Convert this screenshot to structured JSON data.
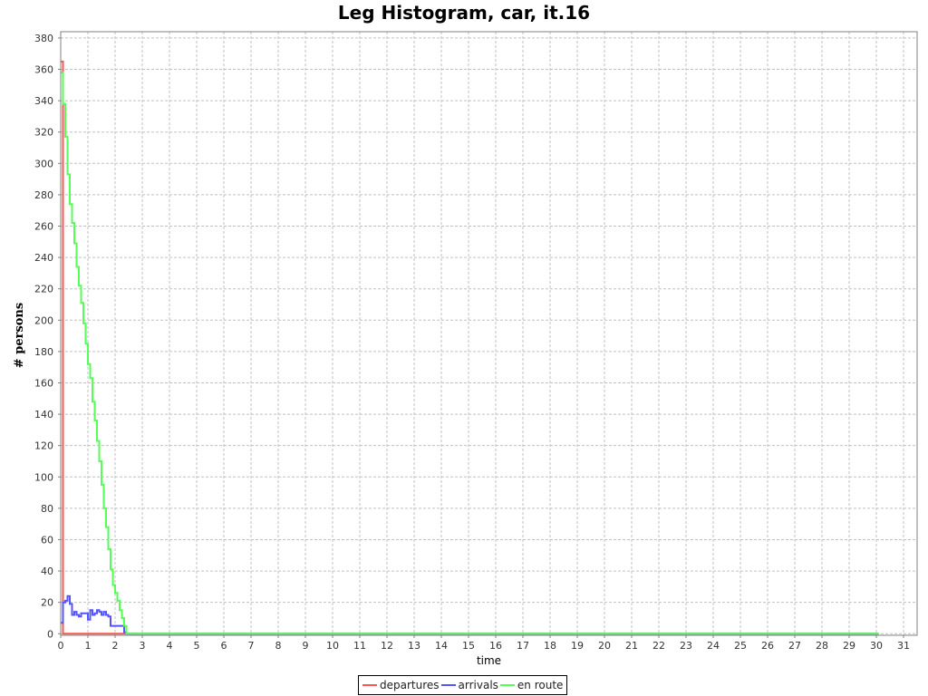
{
  "chart_data": {
    "type": "line",
    "title": "Leg Histogram, car, it.16",
    "xlabel": "time",
    "ylabel": "# persons",
    "xlim": [
      0,
      31.5
    ],
    "ylim": [
      -1,
      384
    ],
    "xticks": [
      0,
      1,
      2,
      3,
      4,
      5,
      6,
      7,
      8,
      9,
      10,
      11,
      12,
      13,
      14,
      15,
      16,
      17,
      18,
      19,
      20,
      21,
      22,
      23,
      24,
      25,
      26,
      27,
      28,
      29,
      30,
      31
    ],
    "yticks": [
      0,
      20,
      40,
      60,
      80,
      100,
      120,
      140,
      160,
      180,
      200,
      220,
      240,
      260,
      280,
      300,
      320,
      340,
      360,
      380
    ],
    "grid": true,
    "legend_position": "bottom",
    "step": 0.08333,
    "series": [
      {
        "name": "departures",
        "color": "#ff5555",
        "x": [
          0,
          0.0833,
          0.1667,
          30
        ],
        "y": [
          365,
          0,
          0,
          0
        ]
      },
      {
        "name": "arrivals",
        "color": "#5555ff",
        "x": [
          0,
          0.0833,
          0.1667,
          0.25,
          0.3333,
          0.4167,
          0.5,
          0.5833,
          0.6667,
          0.75,
          0.8333,
          0.9167,
          1.0,
          1.0833,
          1.1667,
          1.25,
          1.3333,
          1.4167,
          1.5,
          1.5833,
          1.6667,
          1.75,
          1.8333,
          1.9167,
          2.0,
          2.0833,
          2.1667,
          2.25,
          2.3333,
          2.4167,
          2.5,
          2.5833,
          30
        ],
        "y": [
          7,
          20,
          21,
          24,
          19,
          12,
          14,
          12,
          11,
          13,
          13,
          13,
          9,
          15,
          12,
          13,
          15,
          14,
          12,
          14,
          12,
          11,
          5,
          5,
          5,
          5,
          5,
          5,
          1,
          0,
          0,
          0,
          0
        ]
      },
      {
        "name": "en route",
        "color": "#55ff55",
        "x": [
          0,
          0.0833,
          0.1667,
          0.25,
          0.3333,
          0.4167,
          0.5,
          0.5833,
          0.6667,
          0.75,
          0.8333,
          0.9167,
          1.0,
          1.0833,
          1.1667,
          1.25,
          1.3333,
          1.4167,
          1.5,
          1.5833,
          1.6667,
          1.75,
          1.8333,
          1.9167,
          2.0,
          2.0833,
          2.1667,
          2.25,
          2.3333,
          2.4167,
          2.5,
          2.5833,
          30
        ],
        "y": [
          358,
          338,
          317,
          293,
          274,
          262,
          249,
          234,
          222,
          211,
          198,
          185,
          172,
          163,
          148,
          136,
          123,
          110,
          95,
          80,
          68,
          54,
          41,
          31,
          26,
          21,
          15,
          10,
          5,
          0,
          0,
          0,
          0
        ]
      }
    ]
  }
}
